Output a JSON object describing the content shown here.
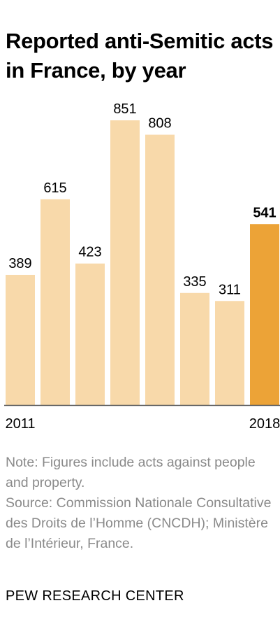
{
  "chart_data": {
    "type": "bar",
    "title": "Reported anti-Semitic acts in France, by year",
    "categories": [
      "2011",
      "",
      "",
      "",
      "",
      "",
      "",
      "2018"
    ],
    "values": [
      389,
      615,
      423,
      851,
      808,
      335,
      311,
      541
    ],
    "highlight_index": 7,
    "colors": {
      "bar": "#f8d9aa",
      "highlight": "#eca337",
      "baseline": "#555555"
    },
    "ylim": [
      0,
      851
    ],
    "grid": false
  },
  "footer": {
    "note": "Note: Figures include acts against people and property.",
    "source": "Source: Commission Nationale Consultative des Droits de l’Homme (CNCDH); Ministère de l’Intérieur, France.",
    "brand": "PEW RESEARCH CENTER"
  }
}
